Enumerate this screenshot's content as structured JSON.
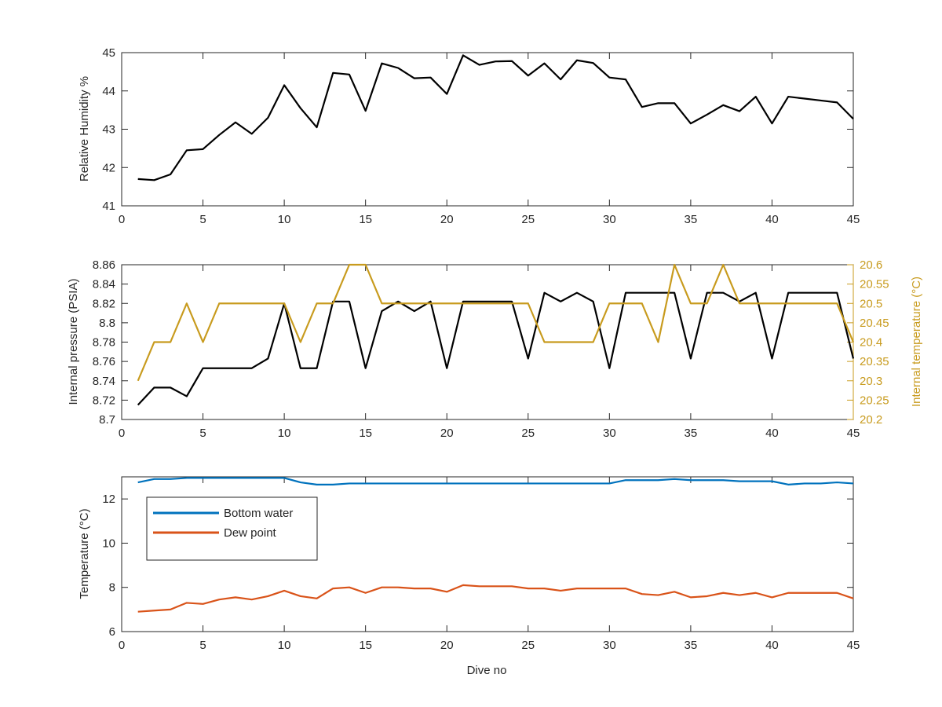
{
  "chart_data": [
    {
      "type": "line",
      "ylabel": "Relative Humidity %",
      "xlabel": "",
      "xlim": [
        0,
        45
      ],
      "ylim": [
        41,
        45
      ],
      "xticks": [
        "0",
        "5",
        "10",
        "15",
        "20",
        "25",
        "30",
        "35",
        "40",
        "45"
      ],
      "yticks": [
        "41",
        "42",
        "43",
        "44",
        "45"
      ],
      "grid": false,
      "series": [
        {
          "color": "#000000",
          "x": [
            1,
            2,
            3,
            4,
            5,
            6,
            7,
            8,
            9,
            10,
            11,
            12,
            13,
            14,
            15,
            16,
            17,
            18,
            19,
            20,
            21,
            22,
            23,
            24,
            25,
            26,
            27,
            28,
            29,
            30,
            31,
            32,
            33,
            34,
            35,
            36,
            37,
            38,
            39,
            40,
            41,
            42,
            43,
            44,
            45
          ],
          "values": [
            41.7,
            41.67,
            41.82,
            42.45,
            42.48,
            42.85,
            43.18,
            42.88,
            43.3,
            44.15,
            43.55,
            43.05,
            44.47,
            44.43,
            43.48,
            44.72,
            44.6,
            44.33,
            44.35,
            43.92,
            44.93,
            44.68,
            44.77,
            44.78,
            44.4,
            44.72,
            44.3,
            44.8,
            44.73,
            44.35,
            44.3,
            43.58,
            43.68,
            43.68,
            43.15,
            43.38,
            43.63,
            43.47,
            43.85,
            43.15,
            43.85,
            43.8,
            43.75,
            43.7,
            43.27
          ]
        }
      ]
    },
    {
      "type": "line",
      "ylabel": "Internal pressure (PSIA)",
      "ylabel_right": "Internal temperature (°C)",
      "xlabel": "",
      "xlim": [
        0,
        45
      ],
      "ylim": [
        8.7,
        8.86
      ],
      "ylim_right": [
        20.2,
        20.6
      ],
      "xticks": [
        "0",
        "5",
        "10",
        "15",
        "20",
        "25",
        "30",
        "35",
        "40",
        "45"
      ],
      "yticks": [
        "8.7",
        "8.72",
        "8.74",
        "8.76",
        "8.78",
        "8.8",
        "8.82",
        "8.84",
        "8.86"
      ],
      "yticks_right": [
        "20.2",
        "20.25",
        "20.3",
        "20.35",
        "20.4",
        "20.45",
        "20.5",
        "20.55",
        "20.6"
      ],
      "grid": false,
      "series": [
        {
          "axis": "left",
          "color": "#000000",
          "x": [
            1,
            2,
            3,
            4,
            5,
            6,
            7,
            8,
            9,
            10,
            11,
            12,
            13,
            14,
            15,
            16,
            17,
            18,
            19,
            20,
            21,
            22,
            23,
            24,
            25,
            26,
            27,
            28,
            29,
            30,
            31,
            32,
            33,
            34,
            35,
            36,
            37,
            38,
            39,
            40,
            41,
            42,
            43,
            44,
            45
          ],
          "values": [
            8.715,
            8.733,
            8.733,
            8.724,
            8.753,
            8.753,
            8.753,
            8.753,
            8.763,
            8.82,
            8.753,
            8.753,
            8.822,
            8.822,
            8.753,
            8.812,
            8.822,
            8.812,
            8.822,
            8.753,
            8.822,
            8.822,
            8.822,
            8.822,
            8.763,
            8.831,
            8.822,
            8.831,
            8.822,
            8.753,
            8.831,
            8.831,
            8.831,
            8.831,
            8.763,
            8.831,
            8.831,
            8.822,
            8.831,
            8.763,
            8.831,
            8.831,
            8.831,
            8.831,
            8.763
          ]
        },
        {
          "axis": "right",
          "color": "#C89B1E",
          "x": [
            1,
            2,
            3,
            4,
            5,
            6,
            7,
            8,
            9,
            10,
            11,
            12,
            13,
            14,
            15,
            16,
            17,
            18,
            19,
            20,
            21,
            22,
            23,
            24,
            25,
            26,
            27,
            28,
            29,
            30,
            31,
            32,
            33,
            34,
            35,
            36,
            37,
            38,
            39,
            40,
            41,
            42,
            43,
            44,
            45
          ],
          "values": [
            20.3,
            20.4,
            20.4,
            20.5,
            20.4,
            20.5,
            20.5,
            20.5,
            20.5,
            20.5,
            20.4,
            20.5,
            20.5,
            20.6,
            20.6,
            20.5,
            20.5,
            20.5,
            20.5,
            20.5,
            20.5,
            20.5,
            20.5,
            20.5,
            20.5,
            20.4,
            20.4,
            20.4,
            20.4,
            20.5,
            20.5,
            20.5,
            20.4,
            20.6,
            20.5,
            20.5,
            20.6,
            20.5,
            20.5,
            20.5,
            20.5,
            20.5,
            20.5,
            20.5,
            20.4
          ]
        }
      ]
    },
    {
      "type": "line",
      "ylabel": "Temperature (°C)",
      "xlabel": "Dive no",
      "xlim": [
        0,
        45
      ],
      "ylim": [
        6,
        13
      ],
      "xticks": [
        "0",
        "5",
        "10",
        "15",
        "20",
        "25",
        "30",
        "35",
        "40",
        "45"
      ],
      "yticks": [
        "6",
        "8",
        "10",
        "12"
      ],
      "grid": false,
      "legend_position": "top-left",
      "series": [
        {
          "name": "Bottom water",
          "color": "#0072BD",
          "x": [
            1,
            2,
            3,
            4,
            5,
            6,
            7,
            8,
            9,
            10,
            11,
            12,
            13,
            14,
            15,
            16,
            17,
            18,
            19,
            20,
            21,
            22,
            23,
            24,
            25,
            26,
            27,
            28,
            29,
            30,
            31,
            32,
            33,
            34,
            35,
            36,
            37,
            38,
            39,
            40,
            41,
            42,
            43,
            44,
            45
          ],
          "values": [
            12.75,
            12.9,
            12.9,
            12.95,
            12.95,
            12.95,
            12.95,
            12.95,
            12.95,
            12.95,
            12.75,
            12.65,
            12.65,
            12.7,
            12.7,
            12.7,
            12.7,
            12.7,
            12.7,
            12.7,
            12.7,
            12.7,
            12.7,
            12.7,
            12.7,
            12.7,
            12.7,
            12.7,
            12.7,
            12.7,
            12.85,
            12.85,
            12.85,
            12.9,
            12.85,
            12.85,
            12.85,
            12.8,
            12.8,
            12.8,
            12.65,
            12.7,
            12.7,
            12.75,
            12.7
          ]
        },
        {
          "name": "Dew point",
          "color": "#D95319",
          "x": [
            1,
            2,
            3,
            4,
            5,
            6,
            7,
            8,
            9,
            10,
            11,
            12,
            13,
            14,
            15,
            16,
            17,
            18,
            19,
            20,
            21,
            22,
            23,
            24,
            25,
            26,
            27,
            28,
            29,
            30,
            31,
            32,
            33,
            34,
            35,
            36,
            37,
            38,
            39,
            40,
            41,
            42,
            43,
            44,
            45
          ],
          "values": [
            6.9,
            6.95,
            7.0,
            7.3,
            7.25,
            7.45,
            7.55,
            7.45,
            7.6,
            7.85,
            7.6,
            7.5,
            7.95,
            8.0,
            7.75,
            8.0,
            8.0,
            7.95,
            7.95,
            7.8,
            8.1,
            8.05,
            8.05,
            8.05,
            7.95,
            7.95,
            7.85,
            7.95,
            7.95,
            7.95,
            7.95,
            7.7,
            7.65,
            7.8,
            7.55,
            7.6,
            7.75,
            7.65,
            7.75,
            7.55,
            7.75,
            7.75,
            7.75,
            7.75,
            7.5
          ]
        }
      ]
    }
  ]
}
